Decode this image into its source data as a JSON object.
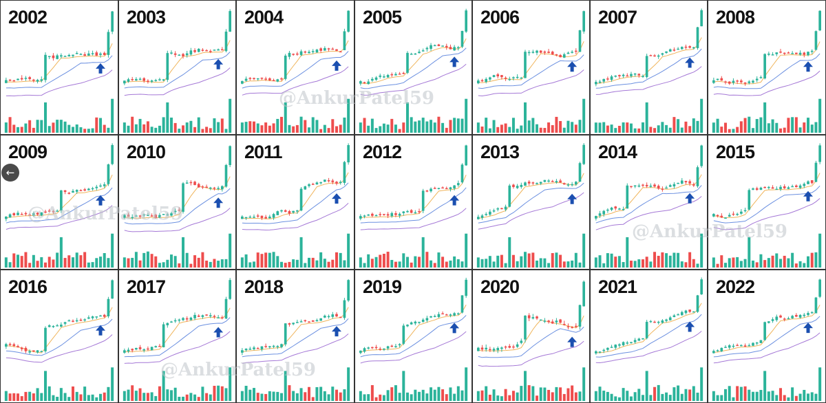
{
  "chart_data": {
    "type": "small-multiples",
    "years": [
      "2002",
      "2003",
      "2004",
      "2005",
      "2006",
      "2007",
      "2008",
      "2009",
      "2010",
      "2011",
      "2012",
      "2013",
      "2014",
      "2015",
      "2016",
      "2017",
      "2018",
      "2019",
      "2020",
      "2021",
      "2022"
    ],
    "markers": "blue up-arrow near last candle",
    "series_colors": {
      "up": "#2bb39a",
      "down": "#ee4d4d",
      "ma_fast": "#f0b45a",
      "ma_mid": "#6a8fe0",
      "ma_slow": "#a477d6"
    }
  },
  "watermarks": [
    "@AnkurPatel59",
    "@AnkurPatel59",
    "@AnkurPatel59",
    "@AnkurPatel59"
  ],
  "colors": {
    "arrow": "#1b4fb0",
    "border": "#333333"
  },
  "icons": {
    "back": "arrow-left-icon"
  },
  "back_glyph": "←"
}
